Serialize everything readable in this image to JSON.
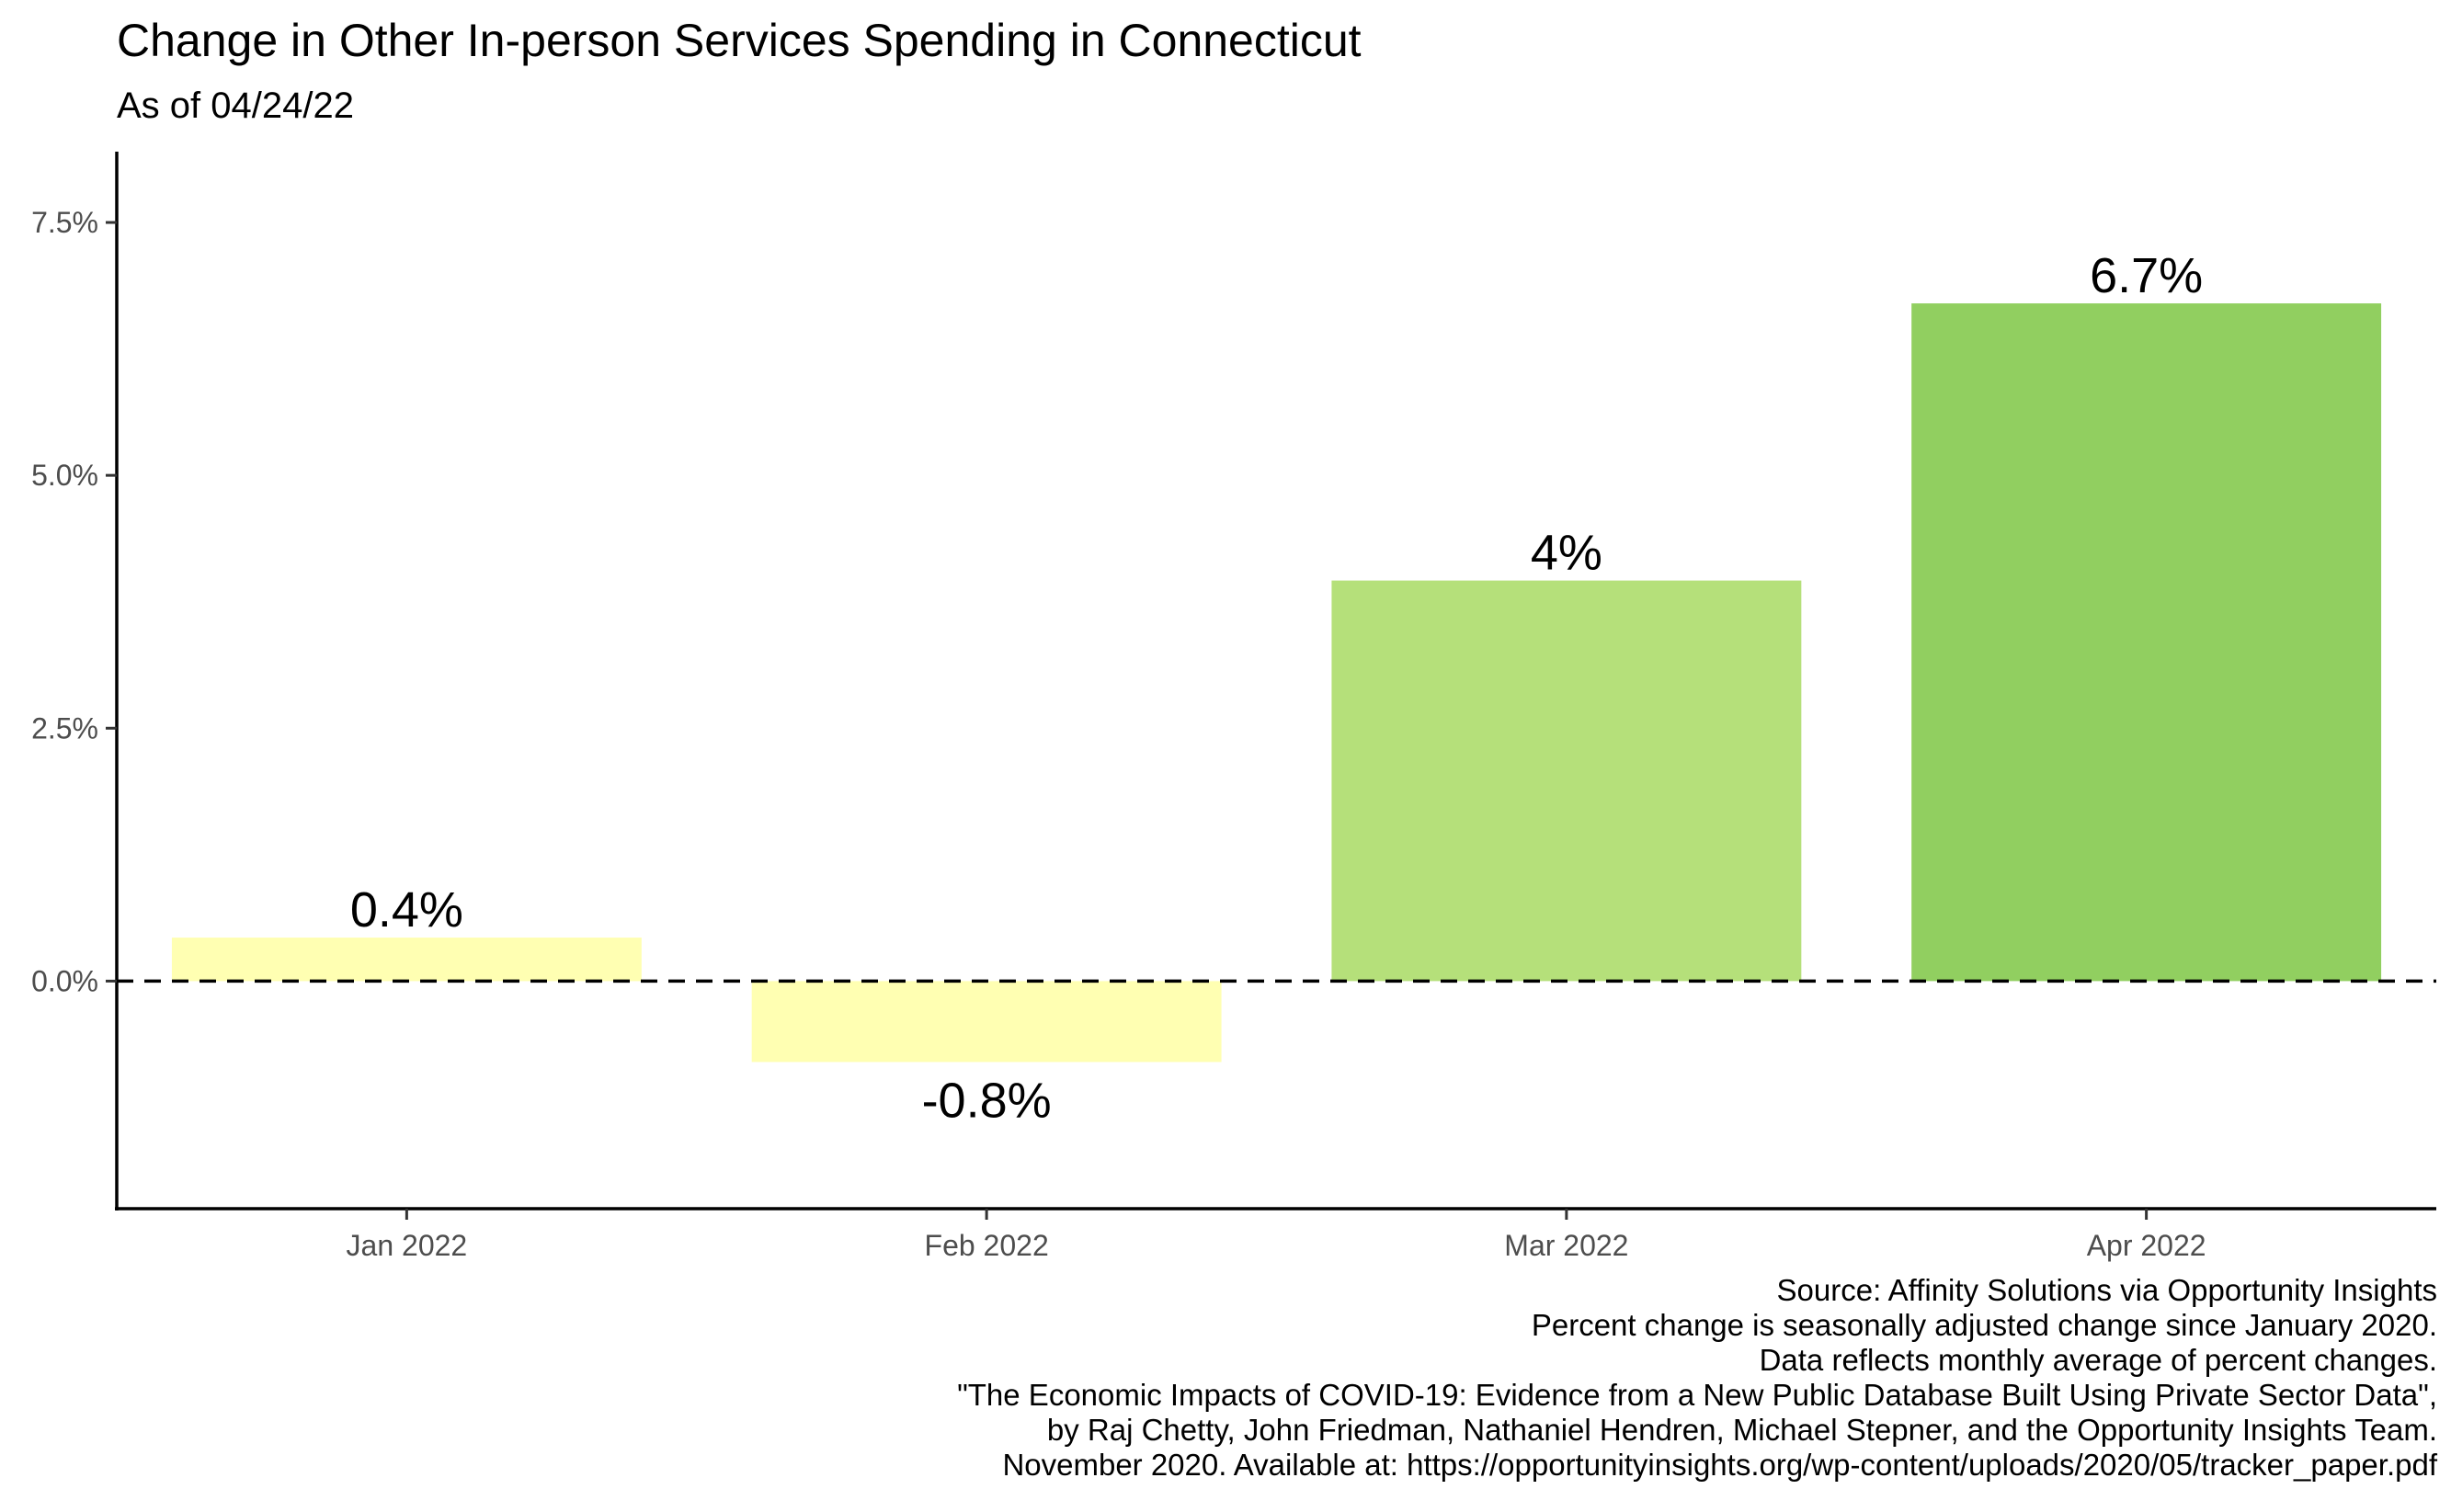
{
  "chart_data": {
    "type": "bar",
    "title": "Change in Other In-person Services Spending in Connecticut",
    "subtitle": "As of 04/24/22",
    "categories": [
      "Jan 2022",
      "Feb 2022",
      "Mar 2022",
      "Apr 2022"
    ],
    "values": [
      0.43,
      -0.8,
      3.96,
      6.7
    ],
    "data_labels": [
      "0.4%",
      "-0.8%",
      "4%",
      "6.7%"
    ],
    "bar_colors": [
      "#ffffb2",
      "#ffffb2",
      "#b5e07a",
      "#91cf60"
    ],
    "ylim": [
      -2.25,
      8.2
    ],
    "yticks": [
      0,
      2.5,
      5,
      7.5
    ],
    "ytick_labels": [
      "0.0%",
      "2.5%",
      "5.0%",
      "7.5%"
    ],
    "reference_line": {
      "value": 0,
      "style": "dashed"
    },
    "grid": false,
    "legend": "none",
    "caption": [
      "Source: Affinity Solutions via Opportunity Insights",
      "Percent change is seasonally adjusted change since January 2020.",
      "Data reflects monthly average of percent changes.",
      "\"The Economic Impacts of COVID-19: Evidence from a New Public Database Built Using Private Sector Data\",",
      "by Raj Chetty, John Friedman, Nathaniel Hendren, Michael Stepner, and the Opportunity Insights Team.",
      "November 2020. Available at: https://opportunityinsights.org/wp-content/uploads/2020/05/tracker_paper.pdf"
    ]
  }
}
